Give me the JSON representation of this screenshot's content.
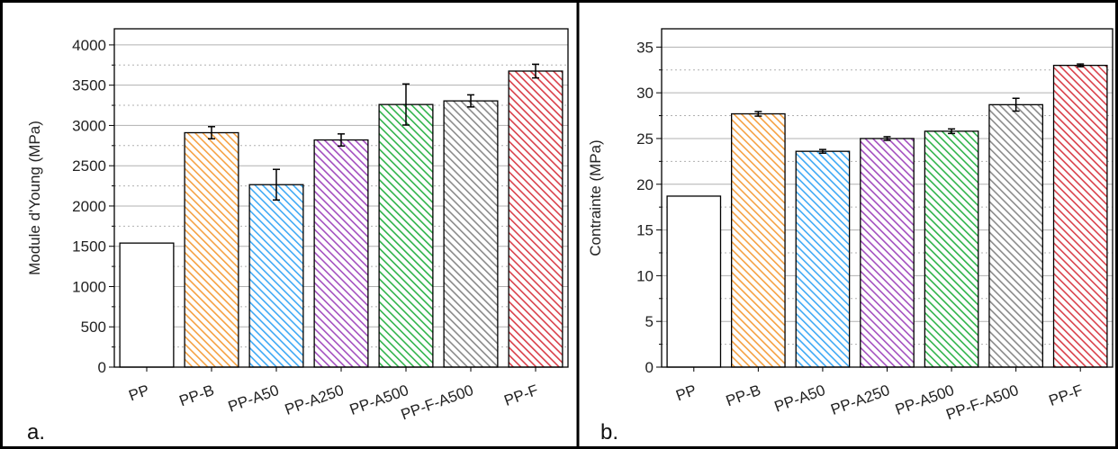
{
  "chart_data": [
    {
      "type": "bar",
      "panel_label": "a.",
      "ylabel": "Module d'Young (MPa)",
      "xlabel": "",
      "ylim": [
        0,
        4200
      ],
      "yticks": [
        0,
        500,
        1000,
        1500,
        2000,
        2500,
        3000,
        3500,
        4000
      ],
      "categories": [
        "PP",
        "PP-B",
        "PP-A50",
        "PP-A250",
        "PP-A500",
        "PP-F-A500",
        "PP-F"
      ],
      "values": [
        1540,
        2910,
        2265,
        2820,
        3260,
        3305,
        3675
      ],
      "errors": [
        0,
        75,
        190,
        75,
        255,
        75,
        85
      ],
      "grid": true,
      "colors": [
        "#ffffff",
        "#f5a142",
        "#3fa9f5",
        "#a34fbf",
        "#2fb34a",
        "#8a8a8a",
        "#d9404a"
      ],
      "hatched": [
        false,
        true,
        true,
        true,
        true,
        true,
        true
      ]
    },
    {
      "type": "bar",
      "panel_label": "b.",
      "ylabel": "Contrainte (MPa)",
      "xlabel": "",
      "ylim": [
        0,
        37
      ],
      "yticks": [
        0,
        5,
        10,
        15,
        20,
        25,
        30,
        35
      ],
      "categories": [
        "PP",
        "PP-B",
        "PP-A50",
        "PP-A250",
        "PP-A500",
        "PP-F-A500",
        "PP-F"
      ],
      "values": [
        18.7,
        27.7,
        23.6,
        25.0,
        25.8,
        28.7,
        33.0
      ],
      "errors": [
        0,
        0.25,
        0.2,
        0.2,
        0.25,
        0.7,
        0.15
      ],
      "grid": true,
      "colors": [
        "#ffffff",
        "#f5a142",
        "#3fa9f5",
        "#a34fbf",
        "#2fb34a",
        "#8a8a8a",
        "#d9404a"
      ],
      "hatched": [
        false,
        true,
        true,
        true,
        true,
        true,
        true
      ]
    }
  ]
}
